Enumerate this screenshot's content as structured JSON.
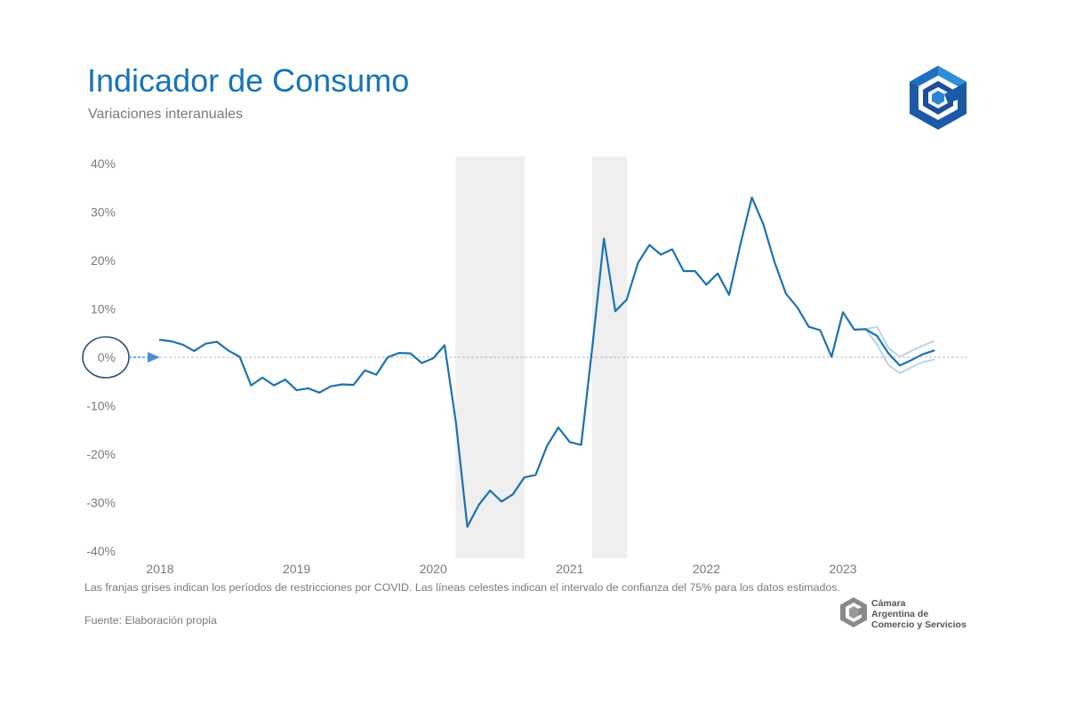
{
  "header": {
    "title": "Indicador de Consumo",
    "subtitle": "Variaciones interanuales",
    "logo_icon": "cac-hexagon-logo-icon"
  },
  "footer": {
    "note": "Las franjas grises indican los períodos de restricciones por COVID. Las líneas celestes indican el intervalo de confianza del 75% para los datos estimados.",
    "source": "Fuente: Elaboración propia",
    "org_name_lines": [
      "Cámara",
      "Argentina de",
      "Comercio y Servicios"
    ]
  },
  "colors": {
    "accent": "#1673b8",
    "series": "#1a72b0",
    "confidence": "#b9d3ea",
    "covid_band": "#efefef",
    "marker": "#4a90d9",
    "circle": "#2d4f74"
  },
  "chart_data": {
    "type": "line",
    "title": "Indicador de Consumo",
    "subtitle": "Variaciones interanuales",
    "xlabel": "",
    "ylabel": "",
    "ylim": [
      -40,
      40
    ],
    "yticks": [
      -40,
      -30,
      -20,
      -10,
      0,
      10,
      20,
      30,
      40
    ],
    "ytick_labels": [
      "-40%",
      "-30%",
      "-20%",
      "-10%",
      "0%",
      "10%",
      "20%",
      "30%",
      "40%"
    ],
    "xticks": [
      "2018",
      "2019",
      "2020",
      "2021",
      "2022",
      "2023"
    ],
    "x_start": "2018-01",
    "grid": false,
    "zero_line": true,
    "annotations": [
      "circle-around-zero-label",
      "arrow-pointing-to-zero"
    ],
    "covid_restriction_periods": [
      [
        "2020-03",
        "2020-09"
      ],
      [
        "2021-03",
        "2021-06"
      ]
    ],
    "series": [
      {
        "x": [
          "2018-01",
          "2018-02",
          "2018-03",
          "2018-04",
          "2018-05",
          "2018-06",
          "2018-07",
          "2018-08",
          "2018-09",
          "2018-10",
          "2018-11",
          "2018-12",
          "2019-01",
          "2019-02",
          "2019-03",
          "2019-04",
          "2019-05",
          "2019-06",
          "2019-07",
          "2019-08",
          "2019-09",
          "2019-10",
          "2019-11",
          "2019-12",
          "2020-01",
          "2020-02",
          "2020-03",
          "2020-04",
          "2020-05",
          "2020-06",
          "2020-07",
          "2020-08",
          "2020-09",
          "2020-10",
          "2020-11",
          "2020-12",
          "2021-01",
          "2021-02",
          "2021-03",
          "2021-04",
          "2021-05",
          "2021-06",
          "2021-07",
          "2021-08",
          "2021-09",
          "2021-10",
          "2021-11",
          "2021-12",
          "2022-01",
          "2022-02",
          "2022-03",
          "2022-04",
          "2022-05",
          "2022-06",
          "2022-07",
          "2022-08",
          "2022-09",
          "2022-10",
          "2022-11",
          "2022-12",
          "2023-01",
          "2023-02",
          "2023-03",
          "2023-04",
          "2023-05",
          "2023-06",
          "2023-07",
          "2023-08",
          "2023-09"
        ],
        "values": [
          3.6,
          3.3,
          2.6,
          1.3,
          2.8,
          3.2,
          1.4,
          0.1,
          -5.8,
          -4.2,
          -5.8,
          -4.6,
          -6.8,
          -6.4,
          -7.3,
          -6.0,
          -5.6,
          -5.7,
          -2.7,
          -3.6,
          0.0,
          0.9,
          0.8,
          -1.2,
          -0.2,
          2.5,
          -13.5,
          -35.0,
          -30.5,
          -27.5,
          -29.8,
          -28.3,
          -24.8,
          -24.3,
          -18.3,
          -14.5,
          -17.5,
          -18.1,
          2.5,
          24.5,
          9.5,
          11.9,
          19.5,
          23.2,
          21.2,
          22.3,
          17.8,
          17.8,
          15.0,
          17.3,
          12.9,
          23.4,
          33.0,
          27.5,
          19.6,
          13.1,
          10.3,
          6.3,
          5.6,
          0.1,
          9.3,
          5.7,
          5.8,
          4.4,
          0.8,
          -1.7,
          -0.6,
          0.6,
          1.4
        ]
      },
      {
        "x": [
          "2023-03",
          "2023-04",
          "2023-05",
          "2023-06",
          "2023-07",
          "2023-08",
          "2023-09"
        ],
        "values": [
          5.8,
          6.3,
          1.9,
          0.1,
          1.3,
          2.4,
          3.3
        ]
      },
      {
        "x": [
          "2023-03",
          "2023-04",
          "2023-05",
          "2023-06",
          "2023-07",
          "2023-08",
          "2023-09"
        ],
        "values": [
          5.8,
          2.6,
          -1.6,
          -3.3,
          -2.1,
          -1.0,
          -0.5
        ]
      }
    ]
  }
}
